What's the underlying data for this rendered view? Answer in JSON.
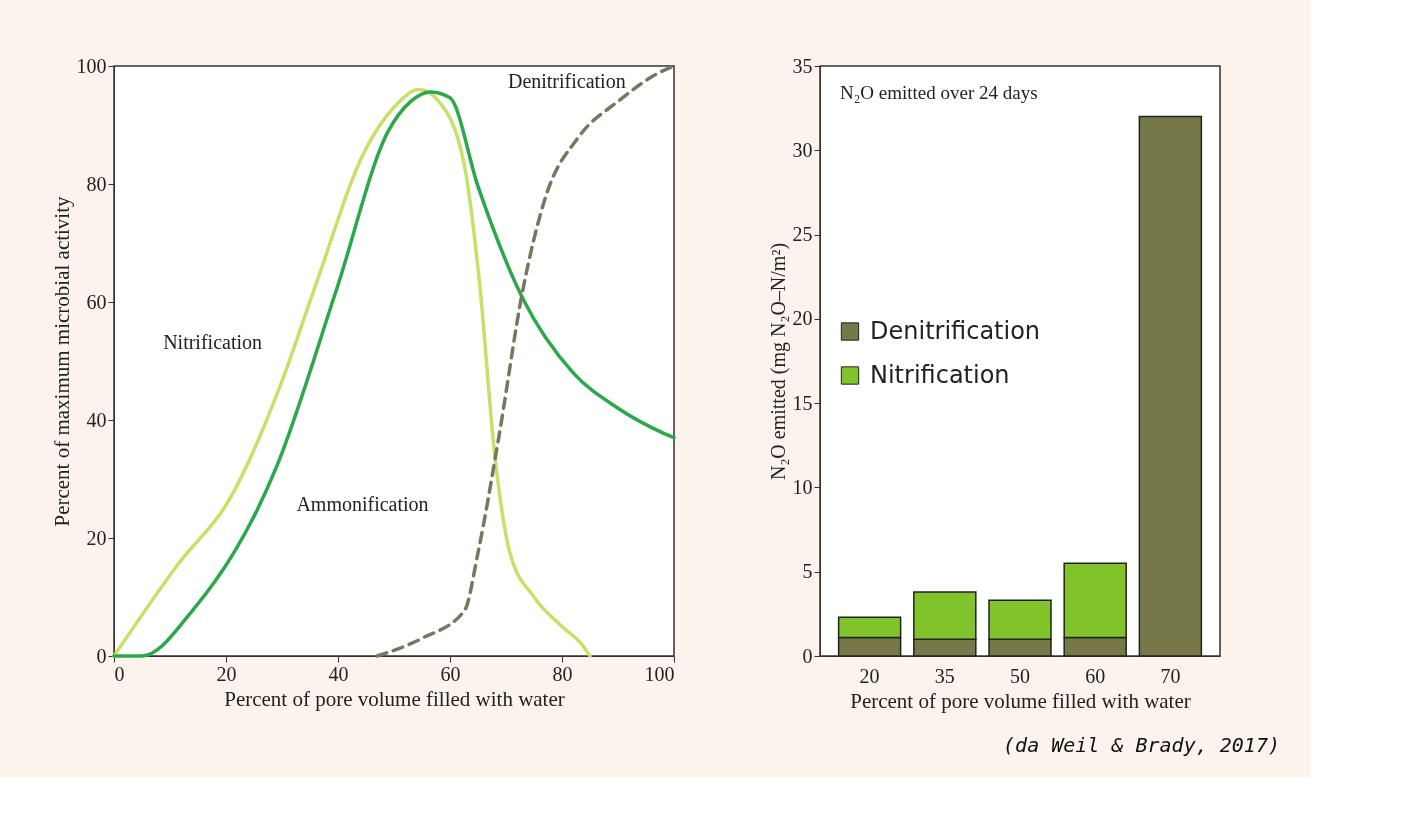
{
  "chart_data": [
    {
      "type": "line",
      "xlabel": "Percent of pore volume filled with water",
      "ylabel": "Percent of maximum microbial activity",
      "xlim": [
        0,
        100
      ],
      "xticks": [
        0,
        20,
        40,
        60,
        80,
        100
      ],
      "ylim": [
        0,
        100
      ],
      "yticks": [
        0,
        20,
        40,
        60,
        80,
        100
      ],
      "grid": false,
      "legend": false,
      "line_style": "solid",
      "series": [
        {
          "color": "#c8e06a",
          "x": [
            0,
            11.4,
            20.9,
            30,
            35.7,
            45,
            50,
            54.5,
            58,
            62.6,
            65.3,
            68,
            70.7,
            75,
            80,
            83.5,
            85
          ],
          "values": [
            0,
            15.5,
            27,
            46.6,
            62,
            86,
            93,
            96,
            94,
            83,
            63,
            34,
            17.5,
            10,
            5,
            2,
            0
          ]
        },
        {
          "color": "#2aa84a",
          "x": [
            0,
            5,
            14,
            29,
            39.7,
            49,
            53,
            56.6,
            60,
            65,
            73,
            82,
            90,
            97.6,
            100
          ],
          "values": [
            0,
            0,
            7.7,
            32,
            62,
            89,
            94,
            95.6,
            94.6,
            79.6,
            60.6,
            48,
            42,
            38,
            37
          ]
        },
        {
          "color": "#7a7560",
          "line_style": "dashed",
          "x": [
            47,
            55,
            62.6,
            65,
            68.7,
            73,
            77,
            83,
            90,
            97.6,
            100
          ],
          "values": [
            0,
            3,
            7.7,
            17.5,
            37,
            62,
            77.6,
            88,
            94,
            99,
            100
          ]
        }
      ],
      "annotations": [
        {
          "text": "Nitrification",
          "x": 30,
          "y": 46.6
        },
        {
          "text": "Ammonification",
          "x": 29,
          "y": 32
        },
        {
          "text": "Denitrification",
          "x": 83,
          "y": 88
        }
      ]
    },
    {
      "type": "bar",
      "stacked": true,
      "xlabel": "Percent of pore volume filled with water",
      "ylabel": "N₂O emitted (mg N₂O–N/m²)",
      "categories": [
        "20",
        "35",
        "50",
        "60",
        "70"
      ],
      "ylim": [
        0,
        35
      ],
      "yticks": [
        0,
        5,
        10,
        15,
        20,
        25,
        30,
        35
      ],
      "grid": false,
      "legend": "left",
      "series": [
        {
          "name": "Denitrification",
          "color": "#77784a",
          "values": [
            1.1,
            1.0,
            1.0,
            1.1,
            32
          ]
        },
        {
          "name": "Nitrification",
          "color": "#80c32a",
          "values": [
            1.2,
            2.8,
            2.3,
            4.4,
            null
          ]
        }
      ],
      "annotations": [
        "N₂O emitted over 24 days",
        "(da Weil & Brady, 2017)"
      ]
    }
  ]
}
